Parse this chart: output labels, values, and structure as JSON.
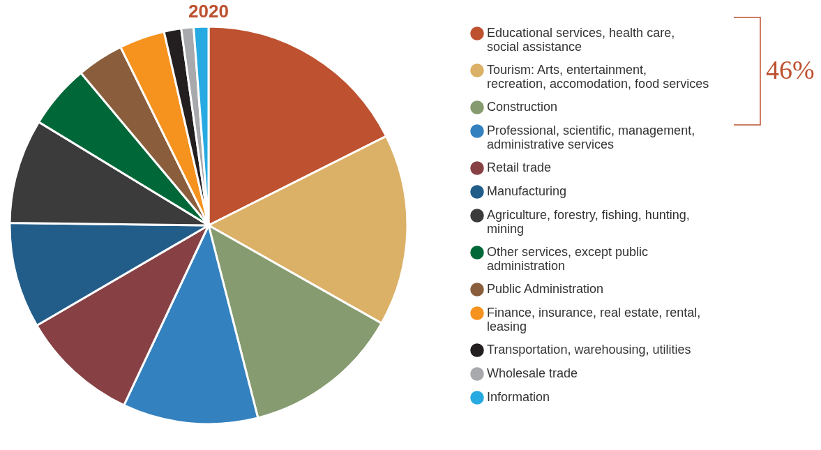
{
  "chart_data": {
    "type": "pie",
    "title": "2020",
    "categories": [
      "Educational services, health care, social assistance",
      "Tourism: Arts, entertainment, recreation, accomodation, food services",
      "Construction",
      "Professional, scientific, management, administrative services",
      "Retail trade",
      "Manufacturing",
      "Agriculture, forestry, fishing, hunting, mining",
      "Other services, except public administration",
      "Public Administration",
      "Finance, insurance, real estate, rental, leasing",
      "Transportation, warehousing, utilities",
      "Wholesale trade",
      "Information"
    ],
    "values": [
      17.6,
      15.6,
      12.8,
      11.0,
      9.6,
      8.6,
      8.5,
      5.2,
      3.8,
      3.7,
      1.4,
      1.0,
      1.2
    ],
    "colors": [
      "#bd5130",
      "#dbb067",
      "#869b6f",
      "#3481bf",
      "#874145",
      "#225d8a",
      "#3b3b3b",
      "#006838",
      "#8a5e3c",
      "#f6921e",
      "#231f20",
      "#a7a9ac",
      "#27aae1"
    ],
    "legend": "right",
    "annotations": [
      "46%"
    ]
  }
}
